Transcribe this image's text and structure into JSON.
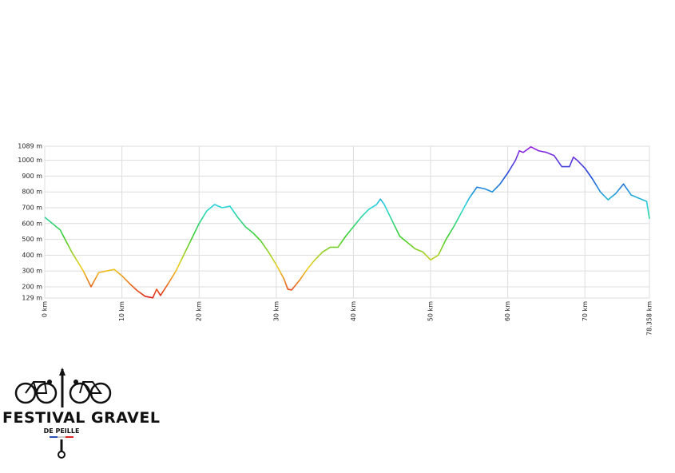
{
  "chart_data": {
    "type": "line",
    "x": [
      0,
      2,
      3.5,
      5,
      6,
      7,
      8,
      9,
      10,
      11,
      12,
      13,
      14,
      14.5,
      15,
      16,
      17,
      18,
      19,
      20,
      21,
      22,
      23,
      24,
      25,
      26,
      27,
      28,
      29,
      30,
      31,
      31.5,
      32,
      33,
      34,
      35,
      36,
      37,
      38,
      39,
      40,
      41,
      42,
      43,
      43.5,
      44,
      45,
      46,
      47,
      48,
      49,
      50,
      51,
      52,
      53,
      54,
      55,
      56,
      57,
      58,
      59,
      60,
      61,
      61.5,
      62,
      63,
      64,
      65,
      66,
      67,
      68,
      68.5,
      69,
      70,
      71,
      72,
      73,
      74,
      75,
      76,
      77,
      78,
      78.358
    ],
    "values": [
      640,
      560,
      420,
      300,
      200,
      290,
      300,
      310,
      270,
      220,
      175,
      140,
      130,
      185,
      145,
      220,
      300,
      400,
      500,
      600,
      680,
      720,
      700,
      710,
      640,
      580,
      540,
      490,
      420,
      340,
      250,
      185,
      180,
      240,
      310,
      370,
      420,
      450,
      450,
      520,
      580,
      640,
      690,
      720,
      755,
      720,
      620,
      520,
      480,
      440,
      420,
      370,
      400,
      500,
      580,
      670,
      760,
      830,
      820,
      800,
      850,
      920,
      1000,
      1060,
      1050,
      1085,
      1060,
      1050,
      1030,
      960,
      960,
      1020,
      1000,
      950,
      880,
      800,
      750,
      790,
      850,
      780,
      760,
      740,
      630
    ],
    "color_scale": [
      "#e0221a",
      "#f0d020",
      "#3ccf2a",
      "#27d8d8",
      "#1c4fd8",
      "#9a1ee0"
    ],
    "xlim": [
      0,
      78.358
    ],
    "xticks": [
      {
        "value": 0,
        "label": "0 km"
      },
      {
        "value": 10,
        "label": "10 km"
      },
      {
        "value": 20,
        "label": "20 km"
      },
      {
        "value": 30,
        "label": "30 km"
      },
      {
        "value": 40,
        "label": "40 km"
      },
      {
        "value": 50,
        "label": "50 km"
      },
      {
        "value": 60,
        "label": "60 km"
      },
      {
        "value": 70,
        "label": "70 km"
      },
      {
        "value": 78.358,
        "label": "78.358 km"
      }
    ],
    "ylim": [
      129,
      1089
    ],
    "yticks": [
      {
        "value": 129,
        "label": "129 m"
      },
      {
        "value": 200,
        "label": "200 m"
      },
      {
        "value": 300,
        "label": "300 m"
      },
      {
        "value": 400,
        "label": "400 m"
      },
      {
        "value": 500,
        "label": "500 m"
      },
      {
        "value": 600,
        "label": "600 m"
      },
      {
        "value": 700,
        "label": "700 m"
      },
      {
        "value": 800,
        "label": "800 m"
      },
      {
        "value": 900,
        "label": "900 m"
      },
      {
        "value": 1000,
        "label": "1000 m"
      },
      {
        "value": 1089,
        "label": "1089 m"
      }
    ],
    "grid": true
  },
  "logo": {
    "title": "FESTIVAL GRAVEL",
    "subtitle": "DE PEILLE"
  }
}
